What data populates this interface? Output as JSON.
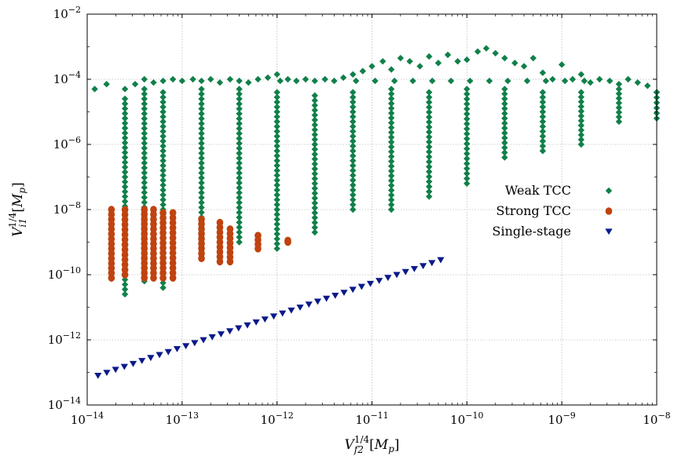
{
  "chart_data": {
    "type": "scatter",
    "xscale": "log",
    "yscale": "log",
    "xlim": [
      1e-14,
      1e-08
    ],
    "ylim": [
      1e-14,
      0.01
    ],
    "grid": true,
    "legend_position": "right",
    "xlabel": "V_{f2}^{1/4}[M_p]",
    "ylabel": "V_{i1}^{1/4}[M_p]",
    "x_ticks": [
      {
        "base": "10",
        "exp": "−14"
      },
      {
        "base": "10",
        "exp": "−13"
      },
      {
        "base": "10",
        "exp": "−12"
      },
      {
        "base": "10",
        "exp": "−11"
      },
      {
        "base": "10",
        "exp": "−10"
      },
      {
        "base": "10",
        "exp": "−9"
      },
      {
        "base": "10",
        "exp": "−8"
      }
    ],
    "y_ticks": [
      {
        "base": "10",
        "exp": "−14"
      },
      {
        "base": "10",
        "exp": "−12"
      },
      {
        "base": "10",
        "exp": "−10"
      },
      {
        "base": "10",
        "exp": "−8"
      },
      {
        "base": "10",
        "exp": "−6"
      },
      {
        "base": "10",
        "exp": "−4"
      },
      {
        "base": "10",
        "exp": "−2"
      }
    ],
    "series": [
      {
        "name": "Weak TCC",
        "marker": "diamond",
        "color": "#11804a",
        "columns": [
          {
            "x": 2.5e-14,
            "ymin_exp": -10.6,
            "ymax_exp": -4.6
          },
          {
            "x": 4e-14,
            "ymin_exp": -10.2,
            "ymax_exp": -4.3
          },
          {
            "x": 6.3e-14,
            "ymin_exp": -10.4,
            "ymax_exp": -4.4
          },
          {
            "x": 1.6e-13,
            "ymin_exp": -9.3,
            "ymax_exp": -4.3
          },
          {
            "x": 4e-13,
            "ymin_exp": -9.0,
            "ymax_exp": -4.3
          },
          {
            "x": 1e-12,
            "ymin_exp": -9.2,
            "ymax_exp": -4.4
          },
          {
            "x": 2.5e-12,
            "ymin_exp": -8.7,
            "ymax_exp": -4.5
          },
          {
            "x": 6.3e-12,
            "ymin_exp": -8.0,
            "ymax_exp": -4.4
          },
          {
            "x": 1.6e-11,
            "ymin_exp": -8.0,
            "ymax_exp": -4.3
          },
          {
            "x": 4e-11,
            "ymin_exp": -7.6,
            "ymax_exp": -4.4
          },
          {
            "x": 1e-10,
            "ymin_exp": -7.2,
            "ymax_exp": -4.3
          },
          {
            "x": 2.5e-10,
            "ymin_exp": -6.4,
            "ymax_exp": -4.3
          },
          {
            "x": 6.3e-10,
            "ymin_exp": -6.2,
            "ymax_exp": -4.4
          },
          {
            "x": 1.6e-09,
            "ymin_exp": -6.0,
            "ymax_exp": -4.4
          },
          {
            "x": 4e-09,
            "ymin_exp": -5.3,
            "ymax_exp": -4.3
          },
          {
            "x": 1e-08,
            "ymin_exp": -5.2,
            "ymax_exp": -4.4
          }
        ],
        "arc": [
          [
            1.2e-14,
            -4.3
          ],
          [
            1.6e-14,
            -4.15
          ],
          [
            2.5e-14,
            -4.3
          ],
          [
            3.2e-14,
            -4.15
          ],
          [
            4e-14,
            -4.0
          ],
          [
            5e-14,
            -4.1
          ],
          [
            6.3e-14,
            -4.05
          ],
          [
            8e-14,
            -4.0
          ],
          [
            1e-13,
            -4.05
          ],
          [
            1.3e-13,
            -4.0
          ],
          [
            1.6e-13,
            -4.05
          ],
          [
            2e-13,
            -4.0
          ],
          [
            2.5e-13,
            -4.1
          ],
          [
            3.2e-13,
            -4.0
          ],
          [
            4e-13,
            -4.05
          ],
          [
            5e-13,
            -4.1
          ],
          [
            6.3e-13,
            -4.0
          ],
          [
            8e-13,
            -3.95
          ],
          [
            1e-12,
            -3.85
          ],
          [
            1.3e-12,
            -4.0
          ],
          [
            1.6e-12,
            -4.05
          ],
          [
            2e-12,
            -4.0
          ],
          [
            2.5e-12,
            -4.05
          ],
          [
            3.2e-12,
            -4.0
          ],
          [
            4e-12,
            -4.05
          ],
          [
            5e-12,
            -3.95
          ],
          [
            6.3e-12,
            -3.85
          ],
          [
            8e-12,
            -3.75
          ],
          [
            1e-11,
            -3.6
          ],
          [
            1.3e-11,
            -3.45
          ],
          [
            1.6e-11,
            -3.7
          ],
          [
            2e-11,
            -3.35
          ],
          [
            2.5e-11,
            -3.45
          ],
          [
            3.2e-11,
            -3.6
          ],
          [
            4e-11,
            -3.3
          ],
          [
            5e-11,
            -3.5
          ],
          [
            6.3e-11,
            -3.25
          ],
          [
            8e-11,
            -3.45
          ],
          [
            1e-10,
            -3.4
          ],
          [
            1.3e-10,
            -3.15
          ],
          [
            1.6e-10,
            -3.05
          ],
          [
            2e-10,
            -3.2
          ],
          [
            2.5e-10,
            -3.35
          ],
          [
            3.2e-10,
            -3.5
          ],
          [
            4e-10,
            -3.6
          ],
          [
            5e-10,
            -3.35
          ],
          [
            6.3e-10,
            -3.8
          ],
          [
            8e-10,
            -4.0
          ],
          [
            1e-09,
            -3.55
          ],
          [
            1.3e-09,
            -4.0
          ],
          [
            1.6e-09,
            -3.85
          ],
          [
            2e-09,
            -4.1
          ],
          [
            2.5e-09,
            -4.0
          ],
          [
            3.2e-09,
            -4.05
          ],
          [
            4e-09,
            -4.15
          ],
          [
            5e-09,
            -4.0
          ],
          [
            6.3e-09,
            -4.1
          ],
          [
            8e-09,
            -4.2
          ],
          [
            1e-08,
            -4.4
          ]
        ]
      },
      {
        "name": "Strong TCC",
        "marker": "circle",
        "color": "#c0430f",
        "columns": [
          {
            "x": 1.8e-14,
            "ymin_exp": -10.1,
            "ymax_exp": -8.0
          },
          {
            "x": 2.5e-14,
            "ymin_exp": -10.0,
            "ymax_exp": -8.0
          },
          {
            "x": 4e-14,
            "ymin_exp": -10.1,
            "ymax_exp": -8.0
          },
          {
            "x": 5e-14,
            "ymin_exp": -10.1,
            "ymax_exp": -8.0
          },
          {
            "x": 6.3e-14,
            "ymin_exp": -10.1,
            "ymax_exp": -8.1
          },
          {
            "x": 8e-14,
            "ymin_exp": -10.1,
            "ymax_exp": -8.1
          },
          {
            "x": 1.6e-13,
            "ymin_exp": -9.5,
            "ymax_exp": -8.3
          },
          {
            "x": 2.5e-13,
            "ymin_exp": -9.6,
            "ymax_exp": -8.4
          },
          {
            "x": 3.2e-13,
            "ymin_exp": -9.6,
            "ymax_exp": -8.6
          },
          {
            "x": 6.3e-13,
            "ymin_exp": -9.2,
            "ymax_exp": -8.8
          },
          {
            "x": 1.3e-12,
            "ymin_exp": -9.0,
            "ymax_exp": -8.95
          }
        ]
      },
      {
        "name": "Single-stage",
        "marker": "triangle-down",
        "color": "#0a1a8a",
        "line": [
          [
            1.3e-14,
            -13.1
          ],
          [
            5.3e-11,
            -9.55
          ]
        ],
        "points": 40
      }
    ]
  }
}
